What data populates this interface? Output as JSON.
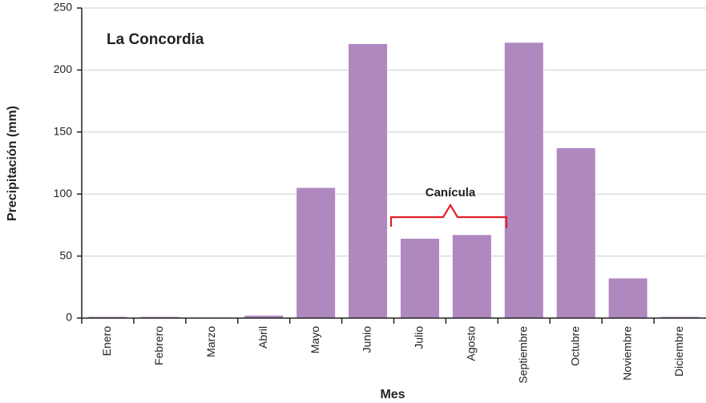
{
  "chart_data": {
    "type": "bar",
    "title": "La Concordia",
    "x_label": "Mes",
    "y_label": "Precipitación (mm)",
    "annotation": "Canícula",
    "categories": [
      "Enero",
      "Febrero",
      "Marzo",
      "Abril",
      "Mayo",
      "Junio",
      "Julio",
      "Agosto",
      "Septiembre",
      "Octubre",
      "Noviembre",
      "Diciembre"
    ],
    "values": [
      1,
      1,
      0,
      2,
      105,
      221,
      64,
      67,
      222,
      137,
      32,
      1
    ],
    "color": "#b088c0",
    "ylim": [
      0,
      250
    ],
    "yticks": [
      0,
      50,
      100,
      150,
      200,
      250
    ],
    "grid": true
  }
}
